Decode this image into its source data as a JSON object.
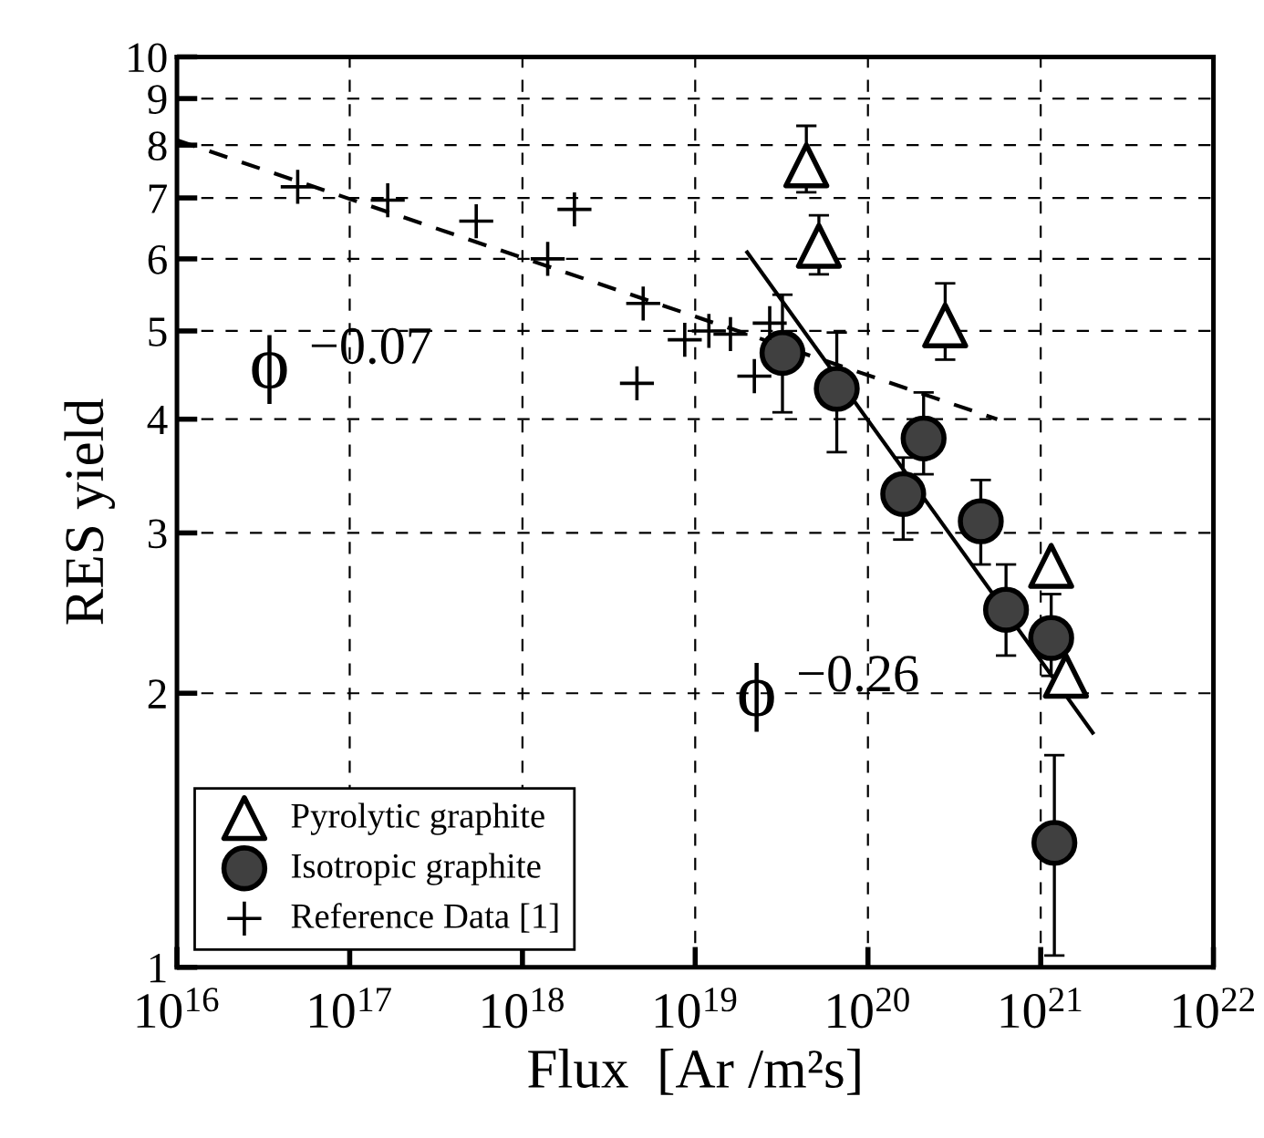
{
  "chart_data": {
    "type": "scatter",
    "xlabel": "Flux  [Ar /m²s]",
    "ylabel": "RES yield",
    "log": "xy",
    "grid": true,
    "legend": "bottom left",
    "xlim": [
      1e+16,
      1e+22
    ],
    "ylim": [
      1,
      10
    ],
    "xticks": [
      {
        "value": 1e+16,
        "label": "10$^{16}$"
      },
      {
        "value": 1e+17,
        "label": "10$^{17}$"
      },
      {
        "value": 1e+18,
        "label": "10$^{18}$"
      },
      {
        "value": 1e+19,
        "label": "10$^{19}$"
      },
      {
        "value": 1e+20,
        "label": "10$^{20}$"
      },
      {
        "value": 1e+21,
        "label": "10$^{21}$"
      },
      {
        "value": 1e+22,
        "label": "10$^{22}$"
      }
    ],
    "yticks": [
      1,
      2,
      3,
      4,
      5,
      6,
      7,
      8,
      9,
      10
    ],
    "annotations": [
      "ϕ $^{−0.07}$",
      "ϕ $^{−0.26}$"
    ],
    "series": [
      {
        "name": "Pyrolytic graphite",
        "marker": "triangle",
        "color": "#000000",
        "x": [
          4.4e+19,
          5.2e+19,
          2.8e+20,
          1.15e+21,
          1.4e+21
        ],
        "values": [
          7.6,
          6.2,
          5.07,
          2.76,
          2.09
        ],
        "errors": [
          [
            7.1,
            8.4
          ],
          [
            5.77,
            6.7
          ],
          [
            4.65,
            5.64
          ],
          null,
          null
        ]
      },
      {
        "name": "Isotropic graphite",
        "marker": "circle",
        "color": "#000000",
        "x": [
          3.2e+19,
          6.6e+19,
          2.1e+20,
          1.6e+20,
          4.5e+20,
          6.3e+20,
          1.15e+21,
          1.2e+21
        ],
        "values": [
          4.73,
          4.32,
          3.81,
          3.31,
          3.09,
          2.47,
          2.3,
          1.37
        ],
        "errors": [
          [
            4.07,
            5.48
          ],
          [
            3.68,
            4.98
          ],
          [
            3.48,
            4.28
          ],
          [
            2.95,
            3.63
          ],
          [
            2.77,
            3.43
          ],
          [
            2.2,
            2.77
          ],
          [
            2.09,
            2.57
          ],
          [
            1.03,
            1.71
          ]
        ]
      },
      {
        "name": "Reference Data [1]",
        "marker": "cross",
        "color": "#000000",
        "x": [
          5e+16,
          1.66e+17,
          5.4e+17,
          2e+18,
          1.4e+18,
          5e+18,
          4.6e+18,
          8.7e+18,
          1.2e+19,
          1.6e+19,
          2.2e+19,
          2.7e+19
        ],
        "values": [
          7.2,
          6.96,
          6.6,
          6.8,
          6.0,
          5.36,
          4.38,
          4.89,
          5.0,
          4.96,
          4.46,
          5.1
        ]
      },
      {
        "type": "line",
        "line_style": "dashed",
        "marker": "none",
        "color": "#000000",
        "x": [
          1e+16,
          5.6e+20
        ],
        "values": [
          8.1,
          4.0
        ]
      },
      {
        "type": "line",
        "line_style": "solid",
        "marker": "none",
        "color": "#000000",
        "x": [
          2e+19,
          2e+21
        ],
        "values": [
          6.1,
          1.81
        ]
      }
    ]
  }
}
